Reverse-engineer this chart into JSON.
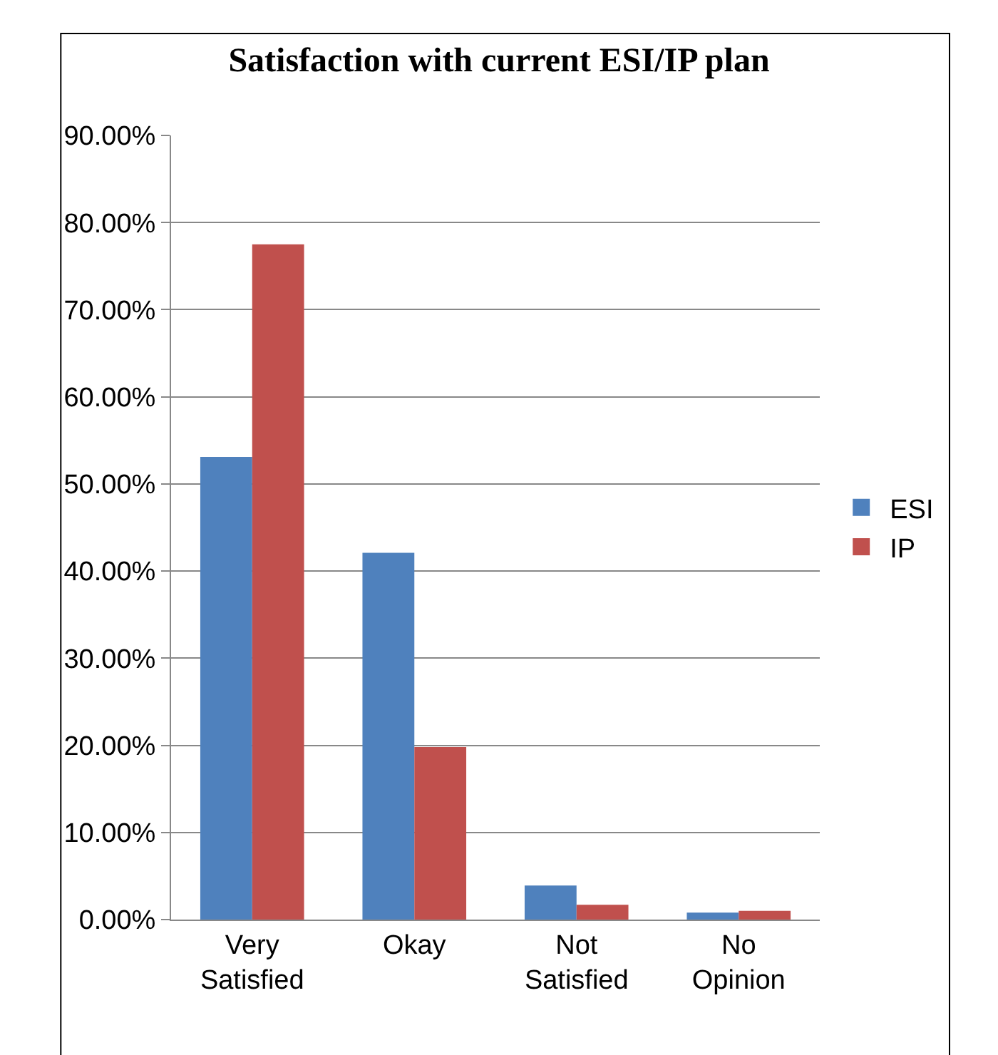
{
  "chart_data": {
    "type": "bar",
    "title": "Satisfaction with current ESI/IP plan",
    "categories": [
      "Very Satisfied",
      "Okay",
      "Not Satisfied",
      "No Opinion"
    ],
    "series": [
      {
        "name": "ESI",
        "color": "#4f81bd",
        "values": [
          53.1,
          42.1,
          3.9,
          0.8
        ]
      },
      {
        "name": "IP",
        "color": "#c0504d",
        "values": [
          77.5,
          19.8,
          1.7,
          1.0
        ]
      }
    ],
    "ylim": [
      0,
      90
    ],
    "yticks": [
      {
        "value": 0,
        "label": "0.00%"
      },
      {
        "value": 10,
        "label": "10.00%"
      },
      {
        "value": 20,
        "label": "20.00%"
      },
      {
        "value": 30,
        "label": "30.00%"
      },
      {
        "value": 40,
        "label": "40.00%"
      },
      {
        "value": 50,
        "label": "50.00%"
      },
      {
        "value": 60,
        "label": "60.00%"
      },
      {
        "value": 70,
        "label": "70.00%"
      },
      {
        "value": 80,
        "label": "80.00%"
      },
      {
        "value": 90,
        "label": "90.00%"
      }
    ],
    "grid": "y",
    "legend": "right"
  }
}
